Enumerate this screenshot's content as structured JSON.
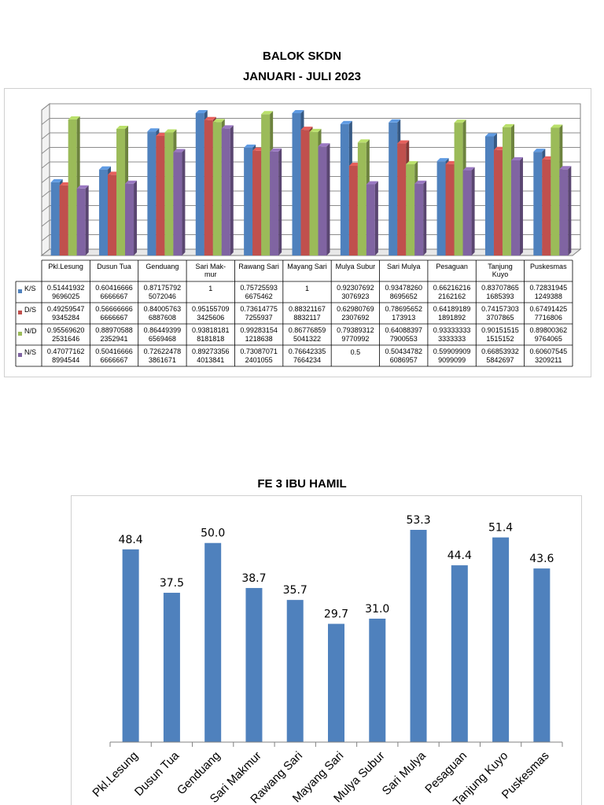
{
  "chart1": {
    "title_line1": "BALOK SKDN",
    "title_line2": "JANUARI - JULI 2023",
    "chart_data": {
      "type": "bar",
      "title": "BALOK SKDN JANUARI - JULI 2023",
      "ylim": [
        0,
        1
      ],
      "categories": [
        "Pkl.Lesung",
        "Dusun Tua",
        "Genduang",
        "Sari Mak-mur",
        "Rawang Sari",
        "Mayang Sari",
        "Mulya Subur",
        "Sari Mulya",
        "Pesaguan",
        "Tanjung Kuyo",
        "Puskesmas"
      ],
      "series": [
        {
          "name": "K/S",
          "color": "#4f81bd",
          "values": [
            0.514419329696025,
            0.604166666666667,
            0.871757925072046,
            1,
            0.757255936675462,
            1,
            0.923076923076923,
            0.934782608695652,
            0.662162162162162,
            0.837078651685393,
            0.728319451249388
          ],
          "labels": [
            [
              "0.51441932",
              "9696025"
            ],
            [
              "0.60416666",
              "6666667"
            ],
            [
              "0.87175792",
              "5072046"
            ],
            [
              "1"
            ],
            [
              "0.75725593",
              "6675462"
            ],
            [
              "1"
            ],
            [
              "0.92307692",
              "3076923"
            ],
            [
              "0.93478260",
              "8695652"
            ],
            [
              "0.66216216",
              "2162162"
            ],
            [
              "0.83707865",
              "1685393"
            ],
            [
              "0.72831945",
              "1249388"
            ]
          ]
        },
        {
          "name": "D/S",
          "color": "#c0504d",
          "values": [
            0.492595479345284,
            0.566666666666667,
            0.840057636887608,
            0.951557093425606,
            0.736147757255937,
            0.883211678832117,
            0.629807692307692,
            0.78695652173913,
            0.641891891891892,
            0.741573033707865,
            0.674914257716806
          ],
          "labels": [
            [
              "0.49259547",
              "9345284"
            ],
            [
              "0.56666666",
              "6666667"
            ],
            [
              "0.84005763",
              "6887608"
            ],
            [
              "0.95155709",
              "3425606"
            ],
            [
              "0.73614775",
              "7255937"
            ],
            [
              "0.88321167",
              "8832117"
            ],
            [
              "0.62980769",
              "2307692"
            ],
            [
              "0.78695652",
              "173913"
            ],
            [
              "0.64189189",
              "1891892"
            ],
            [
              "0.74157303",
              "3707865"
            ],
            [
              "0.67491425",
              "7716806"
            ]
          ]
        },
        {
          "name": "N/D",
          "color": "#9bbb59",
          "values": [
            0.955696202531646,
            0.889705882352941,
            0.864493996569468,
            0.938181818181818,
            0.992831541218638,
            0.867768595041322,
            0.793893129770992,
            0.640883977900553,
            0.933333333333333,
            0.901515151515152,
            0.898003629764065
          ],
          "labels": [
            [
              "0.95569620",
              "2531646"
            ],
            [
              "0.88970588",
              "2352941"
            ],
            [
              "0.86449399",
              "6569468"
            ],
            [
              "0.93818181",
              "8181818"
            ],
            [
              "0.99283154",
              "1218638"
            ],
            [
              "0.86776859",
              "5041322"
            ],
            [
              "0.79389312",
              "9770992"
            ],
            [
              "0.64088397",
              "7900553"
            ],
            [
              "0.93333333",
              "3333333"
            ],
            [
              "0.90151515",
              "1515152"
            ],
            [
              "0.89800362",
              "9764065"
            ]
          ]
        },
        {
          "name": "N/S",
          "color": "#8064a2",
          "values": [
            0.470771628994544,
            0.504166666666667,
            0.726224783861671,
            0.892733564013841,
            0.730870712401055,
            0.766423357664234,
            0.5,
            0.504347826086957,
            0.599099099099099,
            0.668539325842697,
            0.606075453209211
          ],
          "labels": [
            [
              "0.47077162",
              "8994544"
            ],
            [
              "0.50416666",
              "6666667"
            ],
            [
              "0.72622478",
              "3861671"
            ],
            [
              "0.89273356",
              "4013841"
            ],
            [
              "0.73087071",
              "2401055"
            ],
            [
              "0.76642335",
              "7664234"
            ],
            [
              "0.5"
            ],
            [
              "0.50434782",
              "6086957"
            ],
            [
              "0.59909909",
              "9099099"
            ],
            [
              "0.66853932",
              "5842697"
            ],
            [
              "0.60607545",
              "3209211"
            ]
          ]
        }
      ],
      "category_label_lines": [
        [
          "Pkl.Lesung"
        ],
        [
          "Dusun Tua"
        ],
        [
          "Genduang"
        ],
        [
          "Sari Mak-",
          "mur"
        ],
        [
          "Rawang Sari"
        ],
        [
          "Mayang Sari"
        ],
        [
          "Mulya Subur"
        ],
        [
          "Sari Mulya"
        ],
        [
          "Pesaguan"
        ],
        [
          "Tanjung",
          "Kuyo"
        ],
        [
          "Puskesmas"
        ]
      ]
    }
  },
  "chart2": {
    "title": "FE 3 IBU HAMIL",
    "chart_data": {
      "type": "bar",
      "title": "FE 3 IBU HAMIL",
      "color": "#4f81bd",
      "ylim": [
        0,
        60
      ],
      "categories": [
        "Pkl.Lesung",
        "Dusun Tua",
        "Genduang",
        "Sari Makmur",
        "Rawang Sari",
        "Mayang Sari",
        "Mulya Subur",
        "Sari Mulya",
        "Pesaguan",
        "Tanjung Kuyo",
        "Puskesmas"
      ],
      "values": [
        48.4,
        37.5,
        50.0,
        38.7,
        35.7,
        29.7,
        31.0,
        53.3,
        44.4,
        51.4,
        43.6
      ],
      "value_labels": [
        "48.4",
        "37.5",
        "50.0",
        "38.7",
        "35.7",
        "29.7",
        "31.0",
        "53.3",
        "44.4",
        "51.4",
        "43.6"
      ]
    }
  }
}
